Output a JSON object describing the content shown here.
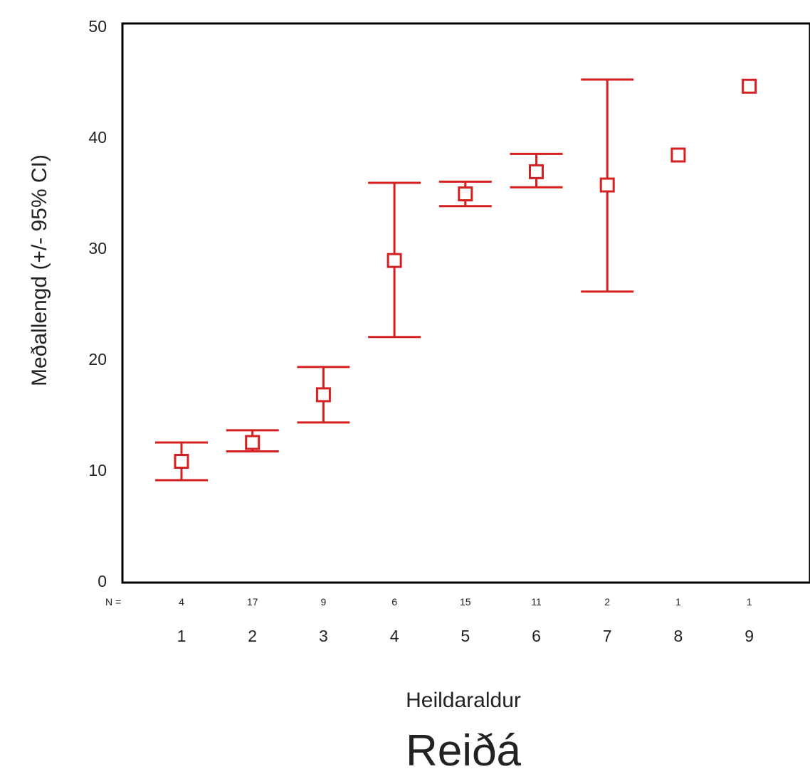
{
  "chart_data": {
    "type": "scatter",
    "subtitle": "Reiðá",
    "xlabel": "Heildaraldur",
    "ylabel": "Meðallengd (+/- 95% CI)",
    "n_prefix": "N =",
    "ylim": [
      0,
      50
    ],
    "yticks": [
      "0",
      "10",
      "20",
      "30",
      "40",
      "50"
    ],
    "categories": [
      "1",
      "2",
      "3",
      "4",
      "5",
      "6",
      "7",
      "8",
      "9"
    ],
    "n_values": [
      "4",
      "17",
      "9",
      "6",
      "15",
      "11",
      "2",
      "1",
      "1"
    ],
    "series": [
      {
        "mean": [
          10.8,
          12.5,
          16.8,
          28.9,
          34.9,
          36.9,
          35.7,
          38.4,
          44.6
        ],
        "lower": [
          9.1,
          11.7,
          14.3,
          22.0,
          33.8,
          35.5,
          26.1,
          null,
          null
        ],
        "upper": [
          12.5,
          13.6,
          19.3,
          35.9,
          36.0,
          38.5,
          45.2,
          null,
          null
        ]
      }
    ],
    "color": "#d42020",
    "grid": false
  }
}
